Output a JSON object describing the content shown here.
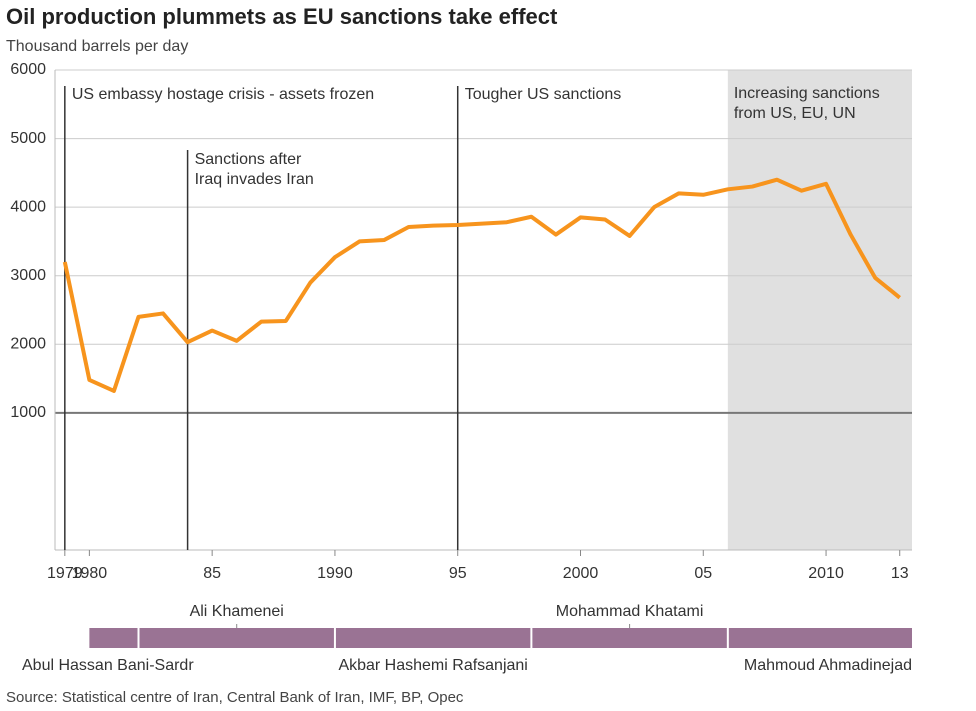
{
  "chart_data": {
    "type": "line",
    "title": "Oil production plummets as EU sanctions take effect",
    "subtitle": "Thousand barrels per day",
    "source": "Source: Statistical centre of Iran, Central Bank of Iran, IMF, BP, Opec",
    "x": [
      1979,
      1980,
      1981,
      1982,
      1983,
      1984,
      1985,
      1986,
      1987,
      1988,
      1989,
      1990,
      1991,
      1992,
      1993,
      1994,
      1995,
      1996,
      1997,
      1998,
      1999,
      2000,
      2001,
      2002,
      2003,
      2004,
      2005,
      2006,
      2007,
      2008,
      2009,
      2010,
      2011,
      2012,
      2013
    ],
    "series": [
      {
        "name": "Oil production",
        "color": "#f7941d",
        "values": [
          3200,
          1480,
          1320,
          2400,
          2450,
          2030,
          2200,
          2050,
          2330,
          2340,
          2900,
          3270,
          3500,
          3520,
          3710,
          3730,
          3740,
          3760,
          3780,
          3860,
          3600,
          3850,
          3820,
          3580,
          4000,
          4200,
          4180,
          4260,
          4300,
          4400,
          4240,
          4340,
          3600,
          2970,
          2680
        ]
      }
    ],
    "xlim": [
      1978.6,
      2013.5
    ],
    "xticks": [
      1979,
      1980,
      {
        "value": 1985,
        "label": "85"
      },
      1990,
      {
        "value": 1995,
        "label": "95"
      },
      2000,
      {
        "value": 2005,
        "label": "05"
      },
      2010,
      {
        "value": 2013,
        "label": "13"
      }
    ],
    "ylim": [
      -1000,
      6000
    ],
    "yticks": [
      1000,
      2000,
      3000,
      4000,
      5000,
      6000
    ],
    "grid": true,
    "annotations": [
      {
        "x": 1979,
        "lines": [
          "US embassy hostage crisis - assets frozen"
        ]
      },
      {
        "x": 1984,
        "lines": [
          "Sanctions after",
          "Iraq invades Iran"
        ]
      },
      {
        "x": 1995,
        "lines": [
          "Tougher US sanctions"
        ]
      }
    ],
    "shaded_region": {
      "start": 2006,
      "lines": [
        "Increasing sanctions",
        "from US, EU, UN"
      ]
    },
    "presidents": [
      {
        "name": "Abul Hassan Bani-Sardr",
        "start": 1980,
        "end": 1982
      },
      {
        "name": "Ali Khamenei",
        "start": 1982,
        "end": 1990
      },
      {
        "name": "Akbar Hashemi Rafsanjani",
        "start": 1990,
        "end": 1998
      },
      {
        "name": "Mohammad Khatami",
        "start": 1998,
        "end": 2006
      },
      {
        "name": "Mahmoud Ahmadinejad",
        "start": 2006,
        "end": 2013.5
      }
    ]
  }
}
